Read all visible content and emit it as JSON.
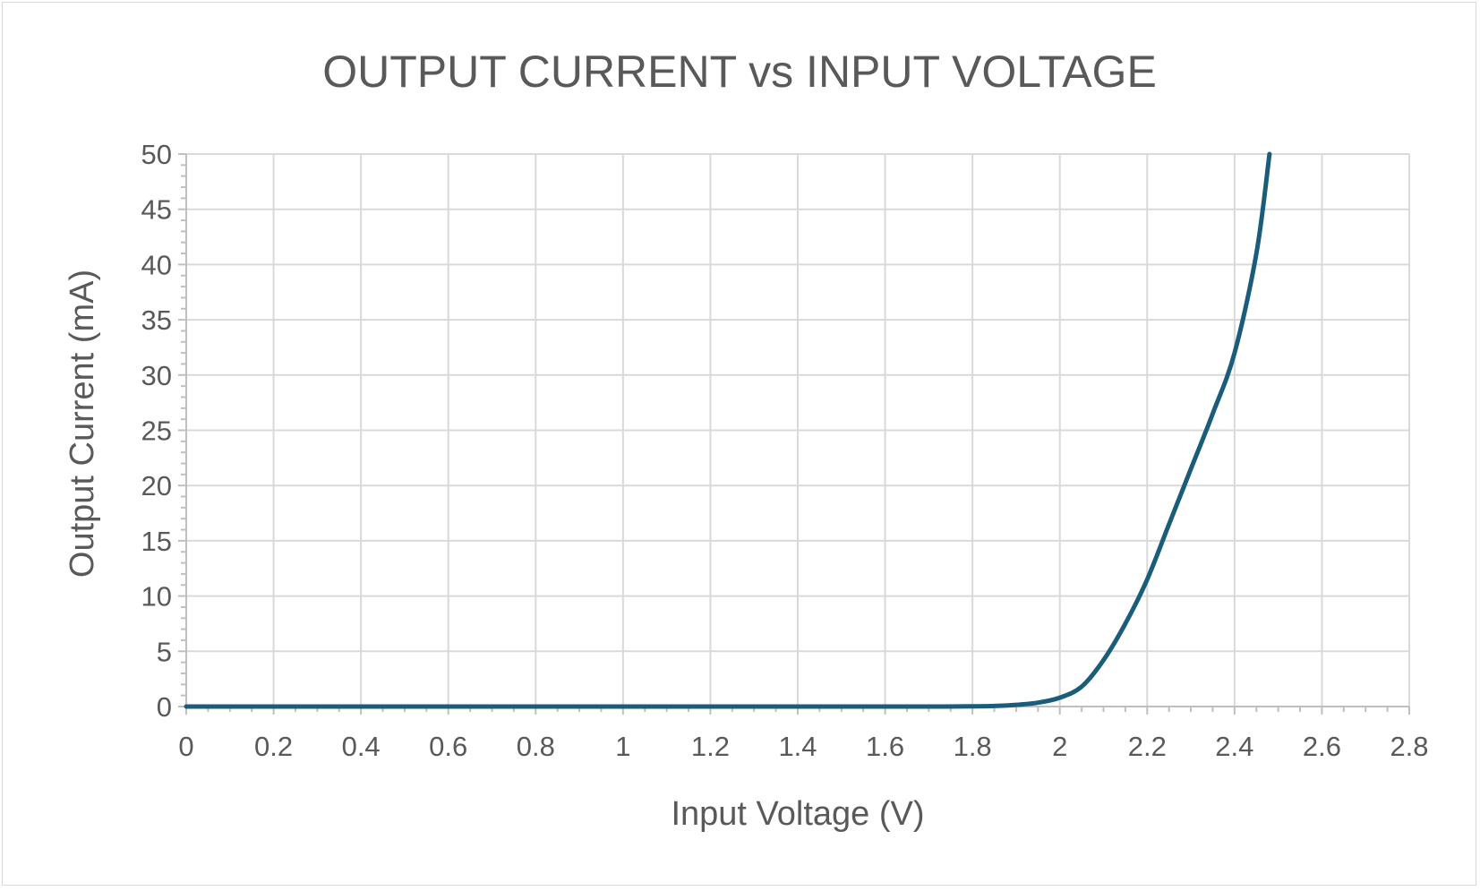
{
  "chart_data": {
    "type": "line",
    "title": "OUTPUT CURRENT vs INPUT VOLTAGE",
    "xlabel": "Input Voltage (V)",
    "ylabel": "Output Current (mA)",
    "xlim": [
      0,
      2.8
    ],
    "ylim": [
      0,
      50
    ],
    "x_ticks": [
      "0",
      "0.2",
      "0.4",
      "0.6",
      "0.8",
      "1",
      "1.2",
      "1.4",
      "1.6",
      "1.8",
      "2",
      "2.2",
      "2.4",
      "2.6",
      "2.8"
    ],
    "x_tick_values": [
      0,
      0.2,
      0.4,
      0.6,
      0.8,
      1.0,
      1.2,
      1.4,
      1.6,
      1.8,
      2.0,
      2.2,
      2.4,
      2.6,
      2.8
    ],
    "y_ticks": [
      "0",
      "5",
      "10",
      "15",
      "20",
      "25",
      "30",
      "35",
      "40",
      "45",
      "50"
    ],
    "y_tick_values": [
      0,
      5,
      10,
      15,
      20,
      25,
      30,
      35,
      40,
      45,
      50
    ],
    "grid": true,
    "minor_ticks": true,
    "legend": "none",
    "series": [
      {
        "color": "#1a5c7a",
        "x": [
          0,
          0.2,
          0.4,
          0.6,
          0.8,
          1.0,
          1.2,
          1.4,
          1.6,
          1.7,
          1.8,
          1.85,
          1.9,
          1.95,
          2.0,
          2.05,
          2.1,
          2.15,
          2.2,
          2.25,
          2.3,
          2.35,
          2.4,
          2.45,
          2.48
        ],
        "y": [
          0,
          0,
          0,
          0,
          0,
          0,
          0,
          0,
          0,
          0,
          0.02,
          0.05,
          0.15,
          0.35,
          0.8,
          1.8,
          4.2,
          7.5,
          11.5,
          16.5,
          21.5,
          26.5,
          32,
          41,
          50
        ]
      }
    ]
  }
}
